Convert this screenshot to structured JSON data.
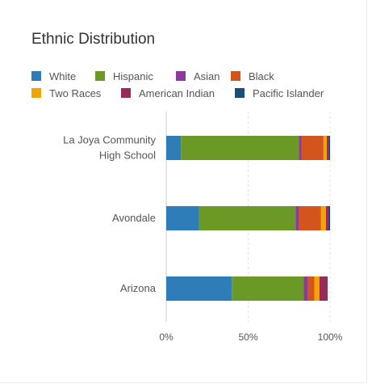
{
  "chart_data": {
    "type": "bar",
    "orientation": "horizontal",
    "stacked": true,
    "title": "Ethnic Distribution",
    "xlabel": "",
    "ylabel": "",
    "xlim": [
      0,
      100
    ],
    "x_ticks": [
      "0%",
      "50%",
      "100%"
    ],
    "grid": true,
    "legend_position": "top",
    "categories": [
      "La Joya Community High School",
      "Avondale",
      "Arizona"
    ],
    "category_lines": [
      [
        "La Joya Community",
        "High School"
      ],
      [
        "Avondale"
      ],
      [
        "Arizona"
      ]
    ],
    "series": [
      {
        "name": "White",
        "color": "#2e7db8",
        "values": [
          9,
          20,
          40
        ]
      },
      {
        "name": "Hispanic",
        "color": "#6a9a25",
        "values": [
          72,
          59,
          44
        ]
      },
      {
        "name": "Asian",
        "color": "#8c3b9a",
        "values": [
          1.5,
          2,
          2.5
        ]
      },
      {
        "name": "Black",
        "color": "#d3541d",
        "values": [
          13.5,
          13.5,
          4
        ]
      },
      {
        "name": "Two Races",
        "color": "#f0a500",
        "values": [
          2,
          3,
          3
        ]
      },
      {
        "name": "American Indian",
        "color": "#9b2a5c",
        "values": [
          1.5,
          1.5,
          4.5
        ]
      },
      {
        "name": "Pacific Islander",
        "color": "#164f7a",
        "values": [
          0.5,
          1,
          0.5
        ]
      }
    ]
  }
}
